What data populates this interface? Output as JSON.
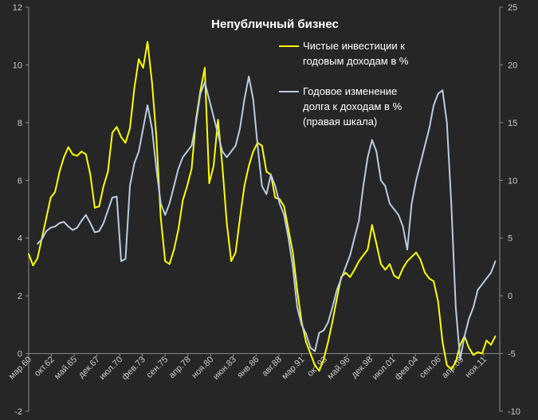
{
  "chart_data": {
    "type": "line",
    "title": "Непубличный бизнес",
    "legend_placement": "top-right",
    "grid": false,
    "x_tick_labels": [
      "мар.60",
      "окт.62",
      "май.65",
      "дек.67",
      "июл.70",
      "фев.73",
      "сен.75",
      "апр.78",
      "ноя.80",
      "июн.83",
      "янв.86",
      "авг.88",
      "мар.91",
      "окт.93",
      "май.96",
      "дек.98",
      "июл.01",
      "фев.04",
      "сен.06",
      "апр.09",
      "ноя.11"
    ],
    "x_range": [
      1960.0,
      2013.5
    ],
    "y_left": {
      "range": [
        -2,
        12
      ],
      "ticks": [
        -2,
        0,
        2,
        4,
        6,
        8,
        10,
        12
      ]
    },
    "y_right": {
      "range": [
        -10,
        25
      ],
      "ticks": [
        -10,
        -5,
        0,
        5,
        10,
        15,
        20,
        25
      ]
    },
    "series": [
      {
        "name": "Чистые инвестиции к годовым доходам в %",
        "axis": "left",
        "color": "#ffff00",
        "legend_lines": [
          "Чистые инвестиции к",
          "годовым доходам в %"
        ],
        "points": [
          [
            1960.0,
            3.45
          ],
          [
            1960.5,
            3.05
          ],
          [
            1961.0,
            3.3
          ],
          [
            1961.5,
            4.0
          ],
          [
            1962.0,
            4.7
          ],
          [
            1962.5,
            5.4
          ],
          [
            1963.0,
            5.6
          ],
          [
            1963.5,
            6.3
          ],
          [
            1964.0,
            6.8
          ],
          [
            1964.5,
            7.15
          ],
          [
            1965.0,
            6.9
          ],
          [
            1965.5,
            6.85
          ],
          [
            1966.0,
            7.0
          ],
          [
            1966.5,
            6.9
          ],
          [
            1967.0,
            6.2
          ],
          [
            1967.5,
            5.05
          ],
          [
            1968.0,
            5.1
          ],
          [
            1968.5,
            5.8
          ],
          [
            1969.0,
            6.3
          ],
          [
            1969.5,
            7.65
          ],
          [
            1970.0,
            7.85
          ],
          [
            1970.5,
            7.5
          ],
          [
            1971.0,
            7.3
          ],
          [
            1971.5,
            7.8
          ],
          [
            1972.0,
            9.2
          ],
          [
            1972.5,
            10.2
          ],
          [
            1973.0,
            9.9
          ],
          [
            1973.5,
            10.8
          ],
          [
            1974.0,
            9.4
          ],
          [
            1974.5,
            7.5
          ],
          [
            1975.0,
            4.7
          ],
          [
            1975.5,
            3.2
          ],
          [
            1976.0,
            3.1
          ],
          [
            1976.5,
            3.6
          ],
          [
            1977.0,
            4.3
          ],
          [
            1977.5,
            5.3
          ],
          [
            1978.0,
            5.8
          ],
          [
            1978.5,
            6.4
          ],
          [
            1979.0,
            8.1
          ],
          [
            1979.5,
            9.1
          ],
          [
            1980.0,
            9.9
          ],
          [
            1980.5,
            5.9
          ],
          [
            1981.0,
            6.5
          ],
          [
            1981.5,
            8.1
          ],
          [
            1982.0,
            6.5
          ],
          [
            1982.5,
            4.5
          ],
          [
            1983.0,
            3.2
          ],
          [
            1983.5,
            3.5
          ],
          [
            1984.0,
            4.7
          ],
          [
            1984.5,
            5.8
          ],
          [
            1985.0,
            6.5
          ],
          [
            1985.5,
            7.0
          ],
          [
            1986.0,
            7.3
          ],
          [
            1986.5,
            7.2
          ],
          [
            1987.0,
            6.3
          ],
          [
            1987.5,
            6.2
          ],
          [
            1988.0,
            5.4
          ],
          [
            1988.5,
            5.35
          ],
          [
            1989.0,
            5.1
          ],
          [
            1989.5,
            4.3
          ],
          [
            1990.0,
            3.5
          ],
          [
            1990.5,
            2.2
          ],
          [
            1991.0,
            1.1
          ],
          [
            1991.5,
            0.4
          ],
          [
            1992.0,
            0.0
          ],
          [
            1992.5,
            -0.4
          ],
          [
            1993.0,
            -0.6
          ],
          [
            1993.5,
            -0.2
          ],
          [
            1994.0,
            0.4
          ],
          [
            1994.5,
            1.1
          ],
          [
            1995.0,
            1.9
          ],
          [
            1995.5,
            2.65
          ],
          [
            1996.0,
            2.8
          ],
          [
            1996.5,
            2.65
          ],
          [
            1997.0,
            2.9
          ],
          [
            1997.5,
            3.2
          ],
          [
            1998.0,
            3.4
          ],
          [
            1998.5,
            3.6
          ],
          [
            1999.0,
            4.45
          ],
          [
            1999.5,
            3.8
          ],
          [
            2000.0,
            3.1
          ],
          [
            2000.5,
            2.9
          ],
          [
            2001.0,
            3.1
          ],
          [
            2001.5,
            2.7
          ],
          [
            2002.0,
            2.6
          ],
          [
            2002.5,
            2.95
          ],
          [
            2003.0,
            3.2
          ],
          [
            2003.5,
            3.35
          ],
          [
            2004.0,
            3.5
          ],
          [
            2004.5,
            3.25
          ],
          [
            2005.0,
            2.8
          ],
          [
            2005.5,
            2.6
          ],
          [
            2006.0,
            2.5
          ],
          [
            2006.5,
            1.8
          ],
          [
            2007.0,
            0.4
          ],
          [
            2007.5,
            -0.4
          ],
          [
            2008.0,
            -0.55
          ],
          [
            2008.5,
            -0.3
          ],
          [
            2009.0,
            0.3
          ],
          [
            2009.5,
            0.6
          ],
          [
            2010.0,
            0.2
          ],
          [
            2010.5,
            -0.05
          ],
          [
            2011.0,
            0.05
          ],
          [
            2011.5,
            0.0
          ],
          [
            2012.0,
            0.45
          ],
          [
            2012.5,
            0.3
          ],
          [
            2013.0,
            0.6
          ]
        ]
      },
      {
        "name": "Годовое изменение долга к доходам в % (правая шкала)",
        "axis": "right",
        "color": "#b8cce4",
        "legend_lines": [
          "Годовое изменение",
          "долга к доходам в %",
          "(правая шкала)"
        ],
        "points": [
          [
            1961.0,
            4.5
          ],
          [
            1961.5,
            4.9
          ],
          [
            1962.0,
            5.6
          ],
          [
            1962.5,
            5.9
          ],
          [
            1963.0,
            6.0
          ],
          [
            1963.5,
            6.3
          ],
          [
            1964.0,
            6.4
          ],
          [
            1964.5,
            6.0
          ],
          [
            1965.0,
            5.7
          ],
          [
            1965.5,
            5.9
          ],
          [
            1966.0,
            6.5
          ],
          [
            1966.5,
            7.0
          ],
          [
            1967.0,
            6.3
          ],
          [
            1967.5,
            5.5
          ],
          [
            1968.0,
            5.6
          ],
          [
            1968.5,
            6.3
          ],
          [
            1969.0,
            7.4
          ],
          [
            1969.5,
            8.5
          ],
          [
            1970.0,
            8.6
          ],
          [
            1970.5,
            3.0
          ],
          [
            1971.0,
            3.2
          ],
          [
            1971.5,
            9.5
          ],
          [
            1972.0,
            11.5
          ],
          [
            1972.5,
            12.5
          ],
          [
            1973.0,
            14.5
          ],
          [
            1973.5,
            16.5
          ],
          [
            1974.0,
            14.5
          ],
          [
            1974.5,
            11.0
          ],
          [
            1975.0,
            8.0
          ],
          [
            1975.5,
            7.0
          ],
          [
            1976.0,
            8.0
          ],
          [
            1976.5,
            9.5
          ],
          [
            1977.0,
            11.0
          ],
          [
            1977.5,
            12.0
          ],
          [
            1978.0,
            12.5
          ],
          [
            1978.5,
            13.0
          ],
          [
            1979.0,
            15.0
          ],
          [
            1979.5,
            17.5
          ],
          [
            1980.0,
            18.5
          ],
          [
            1980.5,
            17.0
          ],
          [
            1981.0,
            15.5
          ],
          [
            1981.5,
            14.0
          ],
          [
            1982.0,
            12.5
          ],
          [
            1982.5,
            12.0
          ],
          [
            1983.0,
            12.5
          ],
          [
            1983.5,
            13.0
          ],
          [
            1984.0,
            14.5
          ],
          [
            1984.5,
            17.0
          ],
          [
            1985.0,
            19.0
          ],
          [
            1985.5,
            17.0
          ],
          [
            1986.0,
            13.0
          ],
          [
            1986.5,
            9.5
          ],
          [
            1987.0,
            8.8
          ],
          [
            1987.5,
            10.5
          ],
          [
            1988.0,
            9.5
          ],
          [
            1988.5,
            8.0
          ],
          [
            1989.0,
            7.0
          ],
          [
            1989.5,
            5.0
          ],
          [
            1990.0,
            2.5
          ],
          [
            1990.5,
            -1.0
          ],
          [
            1991.0,
            -2.5
          ],
          [
            1991.5,
            -3.3
          ],
          [
            1992.0,
            -4.5
          ],
          [
            1992.5,
            -4.8
          ],
          [
            1993.0,
            -3.2
          ],
          [
            1993.5,
            -3.0
          ],
          [
            1994.0,
            -2.3
          ],
          [
            1994.5,
            -1.0
          ],
          [
            1995.0,
            0.5
          ],
          [
            1995.5,
            1.5
          ],
          [
            1996.0,
            2.5
          ],
          [
            1996.5,
            3.5
          ],
          [
            1997.0,
            5.0
          ],
          [
            1997.5,
            6.5
          ],
          [
            1998.0,
            9.5
          ],
          [
            1998.5,
            12.0
          ],
          [
            1999.0,
            13.5
          ],
          [
            1999.5,
            12.5
          ],
          [
            2000.0,
            10.0
          ],
          [
            2000.5,
            9.5
          ],
          [
            2001.0,
            8.0
          ],
          [
            2001.5,
            7.5
          ],
          [
            2002.0,
            7.0
          ],
          [
            2002.5,
            6.0
          ],
          [
            2003.0,
            4.0
          ],
          [
            2003.5,
            8.0
          ],
          [
            2004.0,
            10.0
          ],
          [
            2004.5,
            11.5
          ],
          [
            2005.0,
            13.0
          ],
          [
            2005.5,
            14.5
          ],
          [
            2006.0,
            16.5
          ],
          [
            2006.5,
            17.5
          ],
          [
            2007.0,
            17.8
          ],
          [
            2007.5,
            15.0
          ],
          [
            2008.0,
            8.0
          ],
          [
            2008.5,
            -1.0
          ],
          [
            2009.0,
            -5.5
          ],
          [
            2009.5,
            -3.5
          ],
          [
            2010.0,
            -2.0
          ],
          [
            2010.5,
            -1.0
          ],
          [
            2011.0,
            0.5
          ],
          [
            2011.5,
            1.0
          ],
          [
            2012.0,
            1.5
          ],
          [
            2012.5,
            2.0
          ],
          [
            2013.0,
            3.0
          ]
        ]
      }
    ]
  }
}
